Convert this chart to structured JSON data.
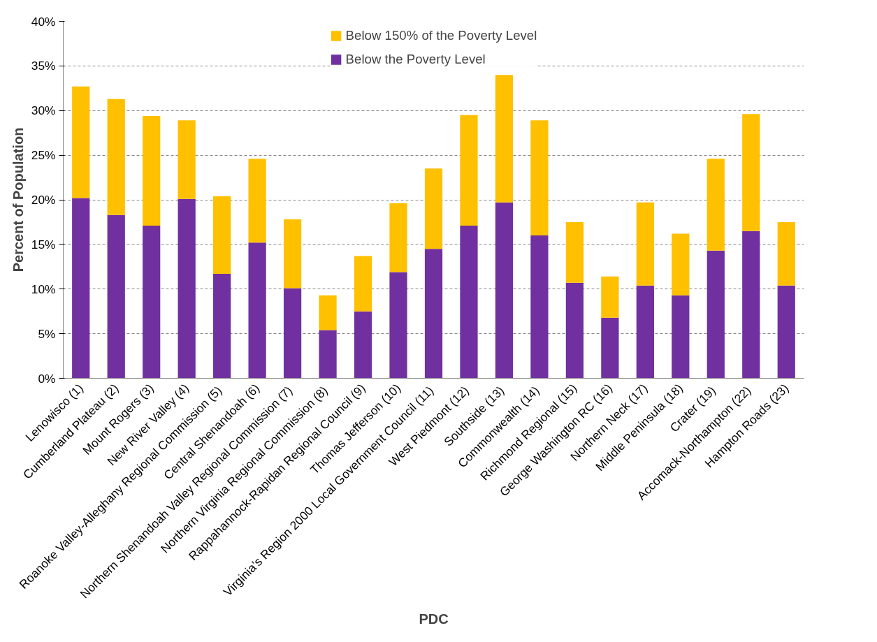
{
  "chart_data": {
    "type": "bar",
    "stacked": true,
    "xlabel": "PDC",
    "ylabel": "Percent of Population",
    "categories": [
      "Lenowisco (1)",
      "Cumberland Plateau (2)",
      "Mount Rogers (3)",
      "New River Valley (4)",
      "Roanoke Valley-Alleghany Regional Commission  (5)",
      "Central Shenandoah (6)",
      "Northern Shenandoah Valley Regional Commission  (7)",
      "Northern Virginia Regional Commission  (8)",
      "Rappahannock-Rapidan Regional Council (9)",
      "Thomas Jefferson (10)",
      "Virginia’s Region 2000 Local Government Council  (11)",
      "West Piedmont  (12)",
      "Southside  (13)",
      "Commonwealth  (14)",
      "Richmond Regional (15)",
      "George Washington RC (16)",
      "Northern Neck (17)",
      "Middle Peninsula (18)",
      "Crater  (19)",
      "Accomack-Northampton  (22)",
      "Hampton Roads (23)"
    ],
    "series": [
      {
        "name": "Below the Poverty Level",
        "color": "#7030a0",
        "values": [
          20.2,
          18.3,
          17.1,
          20.1,
          11.7,
          15.2,
          10.1,
          5.4,
          7.5,
          11.9,
          14.5,
          17.1,
          19.7,
          16.0,
          10.7,
          6.8,
          10.4,
          9.3,
          14.3,
          16.5,
          10.4
        ]
      },
      {
        "name": "Below 150% of the Poverty Level",
        "color": "#ffc000",
        "values": [
          12.5,
          13.0,
          12.3,
          8.8,
          8.7,
          9.4,
          7.7,
          3.9,
          6.2,
          7.7,
          9.0,
          12.4,
          14.3,
          12.9,
          6.8,
          4.6,
          9.3,
          6.9,
          10.3,
          13.1,
          7.1
        ]
      }
    ],
    "ylim": [
      0,
      40
    ],
    "yticks": [
      {
        "value": 0,
        "label": "0%"
      },
      {
        "value": 5,
        "label": "5%"
      },
      {
        "value": 10,
        "label": "10%"
      },
      {
        "value": 15,
        "label": "15%"
      },
      {
        "value": 20,
        "label": "20%"
      },
      {
        "value": 25,
        "label": "25%"
      },
      {
        "value": 30,
        "label": "30%"
      },
      {
        "value": 35,
        "label": "35%"
      },
      {
        "value": 40,
        "label": "40%"
      }
    ],
    "grid": "y",
    "legend": "top"
  }
}
